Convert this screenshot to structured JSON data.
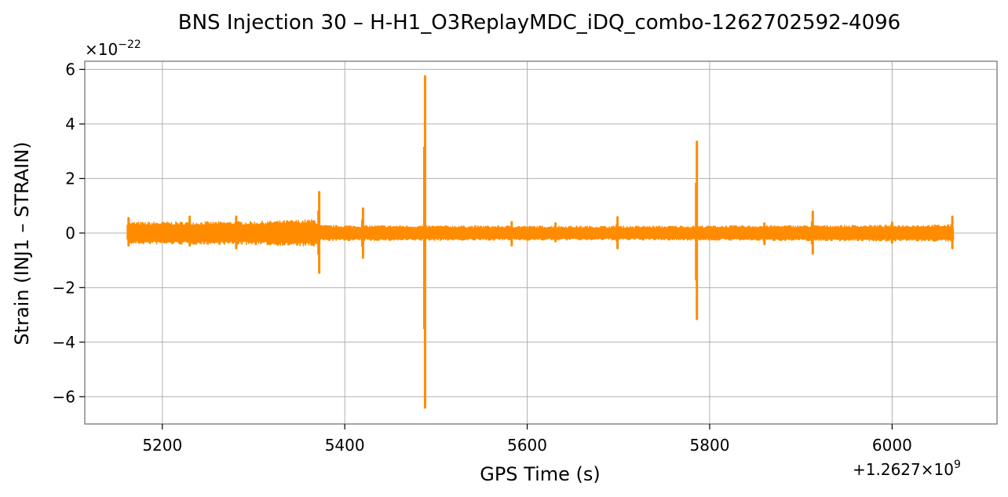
{
  "chart_data": {
    "type": "line",
    "title": "BNS Injection 30 – H-H1_O3ReplayMDC_iDQ_combo-1262702592-4096",
    "xlabel": "GPS Time (s)",
    "ylabel": "Strain (INJ1 – STRAIN)",
    "x_offset_label": "+1.2627×10",
    "x_offset_exponent": "9",
    "y_scale_label": "×10",
    "y_scale_exponent": "−22",
    "xlim": [
      5115,
      6115
    ],
    "ylim": [
      -7,
      6.3
    ],
    "grid": true,
    "x_ticks": [
      {
        "value": 5200,
        "label": "5200"
      },
      {
        "value": 5400,
        "label": "5400"
      },
      {
        "value": 5600,
        "label": "5600"
      },
      {
        "value": 5800,
        "label": "5800"
      },
      {
        "value": 6000,
        "label": "6000"
      }
    ],
    "y_ticks": [
      {
        "value": -6,
        "label": "−6"
      },
      {
        "value": -4,
        "label": "−4"
      },
      {
        "value": -2,
        "label": "−2"
      },
      {
        "value": 0,
        "label": "0"
      },
      {
        "value": 2,
        "label": "2"
      },
      {
        "value": 4,
        "label": "4"
      },
      {
        "value": 6,
        "label": "6"
      }
    ],
    "series": [
      {
        "color": "#ff8c00",
        "x_start": 5162,
        "x_end": 6068,
        "baseline_band": [
          {
            "x": 5162,
            "amp": 0.4
          },
          {
            "x": 5300,
            "amp": 0.42
          },
          {
            "x": 5368,
            "amp": 0.5
          },
          {
            "x": 5372,
            "amp": 0.28
          },
          {
            "x": 5700,
            "amp": 0.25
          },
          {
            "x": 6068,
            "amp": 0.3
          }
        ],
        "spikes": [
          {
            "x": 5163,
            "max": 0.55,
            "min": -0.45
          },
          {
            "x": 5230,
            "max": 0.6,
            "min": -0.45
          },
          {
            "x": 5281,
            "max": 0.6,
            "min": -0.55
          },
          {
            "x": 5372,
            "max": 1.5,
            "min": -1.45
          },
          {
            "x": 5420,
            "max": 0.9,
            "min": -0.9
          },
          {
            "x": 5488,
            "max": 5.75,
            "min": -6.4
          },
          {
            "x": 5583,
            "max": 0.4,
            "min": -0.45
          },
          {
            "x": 5631,
            "max": 0.35,
            "min": -0.3
          },
          {
            "x": 5699,
            "max": 0.58,
            "min": -0.55
          },
          {
            "x": 5786,
            "max": 3.35,
            "min": -3.15
          },
          {
            "x": 5860,
            "max": 0.35,
            "min": -0.4
          },
          {
            "x": 5913,
            "max": 0.78,
            "min": -0.75
          },
          {
            "x": 6000,
            "max": 0.38,
            "min": -0.35
          },
          {
            "x": 6066,
            "max": 0.6,
            "min": -0.55
          }
        ]
      }
    ]
  }
}
